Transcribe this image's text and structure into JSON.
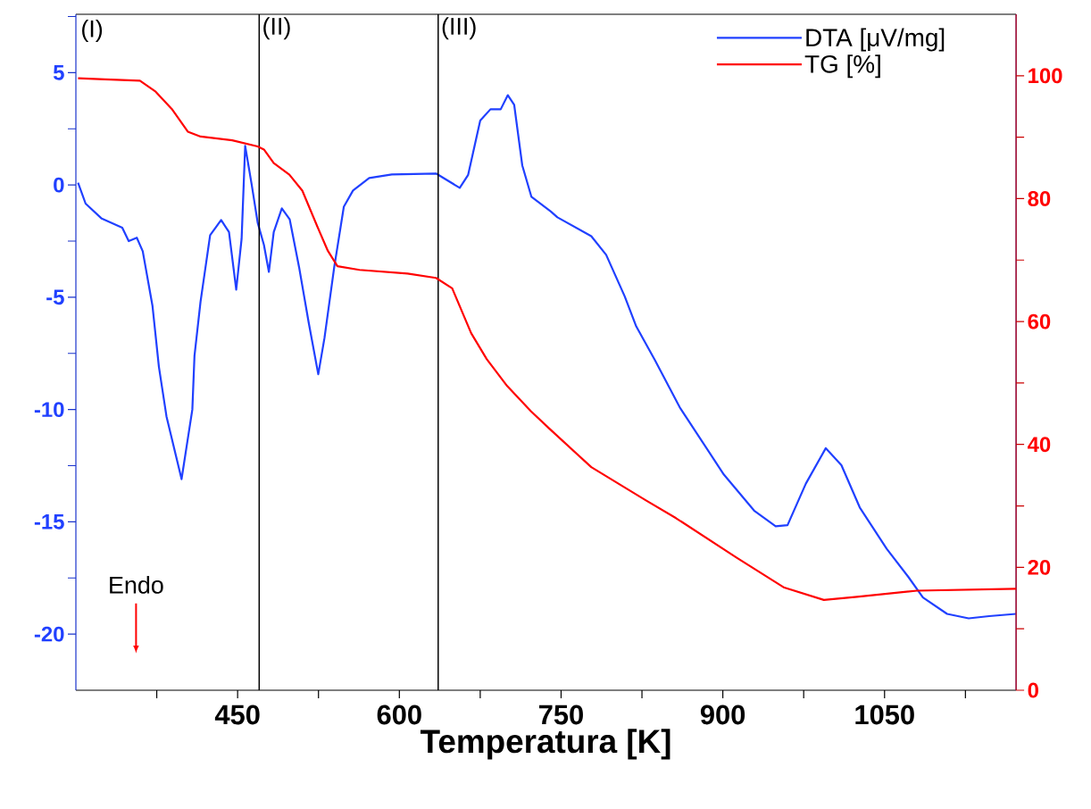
{
  "chart_data": {
    "type": "line",
    "xlabel": "Temperatura [K]",
    "xlim": [
      300,
      1172
    ],
    "xticks": [
      {
        "value": 375,
        "label": null
      },
      450,
      {
        "value": 525,
        "label": null
      },
      600,
      {
        "value": 675,
        "label": null
      },
      750,
      {
        "value": 825,
        "label": null
      },
      900,
      {
        "value": 975,
        "label": null
      },
      1050,
      {
        "value": 1125,
        "label": null
      }
    ],
    "ylim": [
      -22.5,
      7.6
    ],
    "yticks": [
      -20,
      {
        "value": -17.5,
        "label": null
      },
      -15,
      {
        "value": -12.5,
        "label": null
      },
      -10,
      {
        "value": -7.5,
        "label": null
      },
      -5,
      {
        "value": -2.5,
        "label": null
      },
      0,
      {
        "value": 2.5,
        "label": null
      },
      5,
      {
        "value": 7.5,
        "label": null
      }
    ],
    "y2lim": [
      0,
      110
    ],
    "y2ticks": [
      0,
      {
        "value": 10,
        "label": null
      },
      20,
      {
        "value": 30,
        "label": null
      },
      40,
      {
        "value": 50,
        "label": null
      },
      60,
      {
        "value": 70,
        "label": null
      },
      80,
      {
        "value": 90,
        "label": null
      },
      100
    ],
    "legend": "top right",
    "marker": "none",
    "line_style": "solid",
    "series": [
      {
        "name": "DTA [μV/mg]",
        "color": "#2040ff",
        "x": [
          302,
          309,
          324,
          343,
          349,
          356.5,
          362,
          371,
          377,
          384,
          398,
          408,
          410,
          415.6,
          424.5,
          434.7,
          442,
          448.7,
          453.7,
          457,
          463,
          468.6,
          474.4,
          479,
          483.5,
          491,
          498.3,
          507,
          515.8,
          524.8,
          530.6,
          539.6,
          548.5,
          557,
          572,
          593,
          634,
          656,
          663.8,
          675,
          684.5,
          694,
          700.6,
          706.5,
          714,
          722.5,
          740.5,
          746.6,
          778,
          791.8,
          809,
          819.7,
          837,
          860,
          901,
          929,
          949,
          960,
          977,
          995.5,
          1010,
          1027,
          1052,
          1072,
          1085.6,
          1108,
          1128,
          1147,
          1172
        ],
        "values": [
          0.1,
          -0.83,
          -1.5,
          -1.9,
          -2.5,
          -2.35,
          -2.95,
          -5.37,
          -8.1,
          -10.3,
          -13.1,
          -10,
          -7.6,
          -5.2,
          -2.24,
          -1.56,
          -2.1,
          -4.66,
          -2.4,
          1.74,
          0.03,
          -1.68,
          -2.67,
          -3.87,
          -2.1,
          -1.04,
          -1.53,
          -3.66,
          -6.1,
          -8.43,
          -6.8,
          -3.66,
          -0.97,
          -0.25,
          0.31,
          0.47,
          0.51,
          -0.13,
          0.45,
          2.87,
          3.37,
          3.37,
          4.0,
          3.57,
          0.87,
          -0.53,
          -1.18,
          -1.44,
          -2.28,
          -3.11,
          -4.96,
          -6.3,
          -7.8,
          -9.9,
          -12.9,
          -14.5,
          -15.2,
          -15.15,
          -13.3,
          -11.72,
          -12.48,
          -14.36,
          -16.2,
          -17.45,
          -18.37,
          -19.1,
          -19.3,
          -19.2,
          -19.1
        ]
      },
      {
        "name": "TG [%]",
        "color": "#ff0000",
        "axis": "y2",
        "x": [
          302,
          327,
          359.4,
          374,
          388.9,
          403.8,
          415.7,
          445,
          468.6,
          474.4,
          483.5,
          498,
          510,
          524.8,
          533.7,
          542.6,
          563,
          607.6,
          634,
          649,
          666.6,
          681,
          700,
          722,
          739,
          778,
          828.7,
          856.6,
          912.6,
          957,
          993.7,
          1024.5,
          1080,
          1172
        ],
        "values": [
          99.6,
          99.4,
          99.2,
          97.4,
          94.6,
          90.9,
          90.1,
          89.5,
          88.5,
          88,
          85.8,
          83.9,
          81.3,
          75.1,
          71.5,
          69,
          68.4,
          67.8,
          67.1,
          65.4,
          58.1,
          53.9,
          49.5,
          45.4,
          42.6,
          36.3,
          30.9,
          28,
          21.6,
          16.7,
          14.7,
          15.2,
          16.2,
          16.5
        ]
      }
    ],
    "ref_lines": [
      {
        "axis": "x",
        "value": 470,
        "label": "(II)",
        "color": "#000000"
      },
      {
        "axis": "x",
        "value": 636,
        "label": "(III)",
        "color": "#000000"
      }
    ],
    "annotations": [
      "(I)",
      "Endo"
    ]
  }
}
